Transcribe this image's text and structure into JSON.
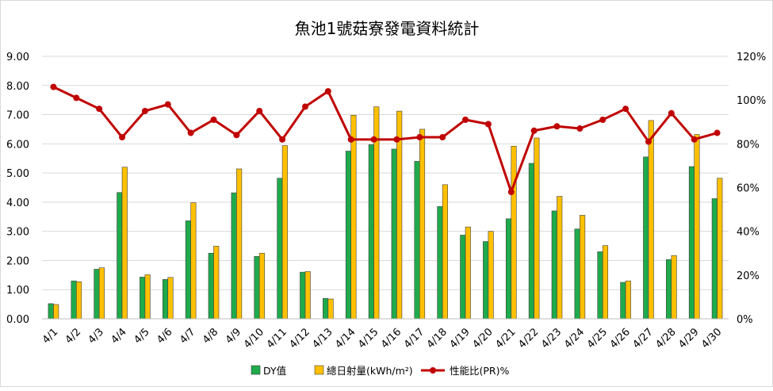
{
  "chart_data": {
    "type": "bar",
    "title": "魚池1號菇寮發電資料統計",
    "categories": [
      "4/1",
      "4/2",
      "4/3",
      "4/4",
      "4/5",
      "4/6",
      "4/7",
      "4/8",
      "4/9",
      "4/10",
      "4/11",
      "4/12",
      "4/13",
      "4/14",
      "4/15",
      "4/16",
      "4/17",
      "4/18",
      "4/19",
      "4/20",
      "4/21",
      "4/22",
      "4/23",
      "4/24",
      "4/25",
      "4/26",
      "4/27",
      "4/28",
      "4/29",
      "4/30"
    ],
    "y_left": {
      "ylim": [
        0,
        9
      ],
      "ticks": [
        "0.00",
        "1.00",
        "2.00",
        "3.00",
        "4.00",
        "5.00",
        "6.00",
        "7.00",
        "8.00",
        "9.00"
      ]
    },
    "y_right": {
      "ylim": [
        0,
        120
      ],
      "ticks": [
        "0%",
        "20%",
        "40%",
        "60%",
        "80%",
        "100%",
        "120%"
      ]
    },
    "grid": true,
    "legend_position": "bottom",
    "series": [
      {
        "name": "DY值",
        "type": "bar",
        "axis": "left",
        "color": "#1faa4b",
        "values": [
          0.52,
          1.3,
          1.7,
          4.33,
          1.43,
          1.35,
          3.36,
          2.25,
          4.32,
          2.14,
          4.82,
          1.6,
          0.7,
          5.75,
          5.97,
          5.82,
          5.4,
          3.85,
          2.87,
          2.65,
          3.43,
          5.33,
          3.7,
          3.08,
          2.3,
          1.25,
          5.55,
          2.03,
          5.22,
          4.12
        ]
      },
      {
        "name": "總日射量(kWh/m²)",
        "type": "bar",
        "axis": "left",
        "color": "#ffc000",
        "values": [
          0.49,
          1.27,
          1.75,
          5.2,
          1.51,
          1.42,
          3.98,
          2.49,
          5.14,
          2.25,
          5.94,
          1.62,
          0.68,
          6.98,
          7.27,
          7.12,
          6.5,
          4.6,
          3.15,
          3.0,
          5.92,
          6.2,
          4.2,
          3.55,
          2.51,
          1.3,
          6.8,
          2.17,
          6.32,
          4.82
        ]
      },
      {
        "name": "性能比(PR)%",
        "type": "line",
        "axis": "right",
        "color": "#c00000",
        "values": [
          106,
          101,
          96,
          83,
          95,
          98,
          85,
          91,
          84,
          95,
          82,
          97,
          104,
          82,
          82,
          82,
          83,
          83,
          91,
          89,
          58,
          86,
          88,
          87,
          91,
          96,
          81,
          94,
          82,
          85
        ]
      }
    ]
  }
}
